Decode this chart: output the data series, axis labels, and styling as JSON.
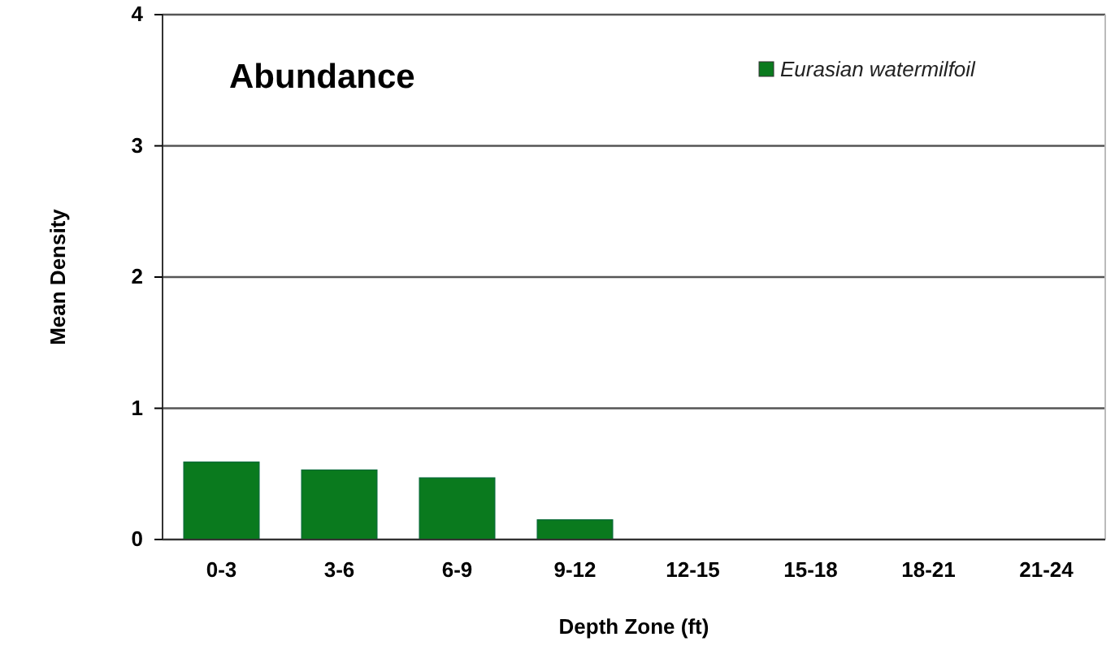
{
  "chart_data": {
    "type": "bar",
    "title": "Abundance",
    "xlabel": "Depth Zone (ft)",
    "ylabel": "Mean Density",
    "categories": [
      "0-3",
      "3-6",
      "6-9",
      "9-12",
      "12-15",
      "15-18",
      "18-21",
      "21-24"
    ],
    "series": [
      {
        "name": "Eurasian watermilfoil",
        "color": "#0a7a1e",
        "values": [
          0.59,
          0.53,
          0.47,
          0.15,
          0,
          0,
          0,
          0
        ]
      }
    ],
    "ylim": [
      0,
      4
    ],
    "yticks": [
      0,
      1,
      2,
      3,
      4
    ],
    "grid": "y",
    "legend": "top right"
  }
}
